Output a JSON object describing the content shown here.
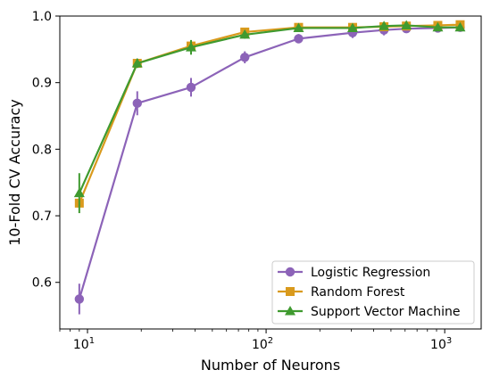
{
  "chart_data": {
    "type": "line",
    "title": "",
    "xlabel": "Number of Neurons",
    "ylabel": "10-Fold CV Accuracy",
    "xscale": "log",
    "xlim": [
      7,
      1600
    ],
    "ylim": [
      0.53,
      1.0
    ],
    "x_ticks": [
      {
        "value": 10,
        "base": "10",
        "exp": "1"
      },
      {
        "value": 100,
        "base": "10",
        "exp": "2"
      },
      {
        "value": 1000,
        "base": "10",
        "exp": "3"
      }
    ],
    "y_ticks": [
      {
        "value": 0.6,
        "label": "0.6"
      },
      {
        "value": 0.7,
        "label": "0.7"
      },
      {
        "value": 0.8,
        "label": "0.8"
      },
      {
        "value": 0.9,
        "label": "0.9"
      },
      {
        "value": 1.0,
        "label": "1.0"
      }
    ],
    "grid": false,
    "legend_position": "lower-right",
    "series": [
      {
        "name": "Logistic Regression",
        "color": "#8c63b8",
        "marker": "circle",
        "x": [
          9,
          19,
          38,
          76,
          152,
          305,
          457,
          610,
          915,
          1220
        ],
        "y": [
          0.575,
          0.869,
          0.893,
          0.938,
          0.966,
          0.975,
          0.979,
          0.981,
          0.982,
          0.983
        ],
        "err": [
          0.023,
          0.018,
          0.014,
          0.009,
          0.007,
          0.008,
          0.008,
          0.006,
          0.005,
          0.004
        ]
      },
      {
        "name": "Random Forest",
        "color": "#d99a1d",
        "marker": "square",
        "x": [
          9,
          19,
          38,
          76,
          152,
          305,
          457,
          610,
          915,
          1220
        ],
        "y": [
          0.719,
          0.929,
          0.955,
          0.976,
          0.983,
          0.983,
          0.984,
          0.985,
          0.986,
          0.987
        ],
        "err": [
          0.006,
          0.005,
          0.006,
          0.005,
          0.004,
          0.004,
          0.004,
          0.003,
          0.003,
          0.003
        ]
      },
      {
        "name": "Support Vector Machine",
        "color": "#3f9a2f",
        "marker": "triangle",
        "x": [
          9,
          19,
          38,
          76,
          152,
          305,
          457,
          610,
          915,
          1220
        ],
        "y": [
          0.734,
          0.929,
          0.953,
          0.972,
          0.982,
          0.982,
          0.985,
          0.986,
          0.983,
          0.983
        ],
        "err": [
          0.03,
          0.007,
          0.011,
          0.006,
          0.004,
          0.004,
          0.003,
          0.003,
          0.003,
          0.003
        ]
      }
    ]
  }
}
